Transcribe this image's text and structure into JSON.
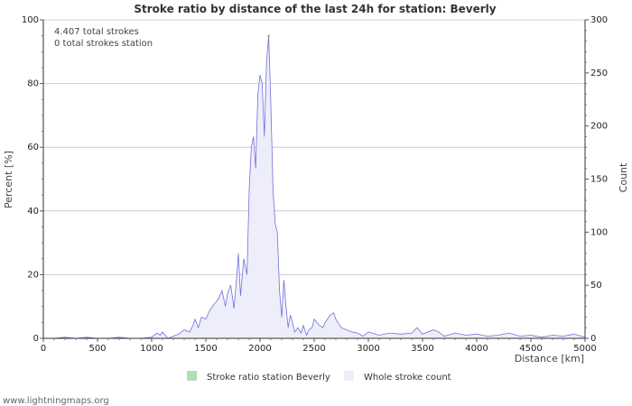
{
  "chart_data": {
    "type": "area",
    "title": "Stroke ratio by distance of the last 24h for station: Beverly",
    "xlabel": "Distance   [km]",
    "ylabel_left": "Percent   [%]",
    "ylabel_right": "Count",
    "xlim": [
      0,
      5000
    ],
    "ylim_left": [
      0,
      100
    ],
    "ylim_right": [
      0,
      300
    ],
    "x_ticks": [
      0,
      500,
      1000,
      1500,
      2000,
      2500,
      3000,
      3500,
      4000,
      4500,
      5000
    ],
    "y_ticks_left": [
      0,
      20,
      40,
      60,
      80,
      100
    ],
    "y_ticks_right": [
      0,
      50,
      100,
      150,
      200,
      250,
      300
    ],
    "grid": true,
    "annotations": [
      "4.407 total strokes",
      "0 total strokes station"
    ],
    "colors": {
      "ratio": "#b4dcb4",
      "count_fill": "#eeeefa",
      "count_line": "#7070dd",
      "grid": "#cccccc"
    },
    "legend": [
      {
        "label": "Stroke ratio station Beverly",
        "color": "#b4dcb4"
      },
      {
        "label": "Whole stroke count",
        "color": "#eeeefa"
      }
    ],
    "series": [
      {
        "name": "Stroke ratio station Beverly",
        "axis": "left",
        "x": [
          0,
          5000
        ],
        "values": [
          0,
          0
        ]
      },
      {
        "name": "Whole stroke count",
        "axis": "right",
        "x": [
          0,
          100,
          200,
          300,
          400,
          500,
          600,
          700,
          800,
          900,
          1000,
          1050,
          1080,
          1100,
          1150,
          1200,
          1250,
          1300,
          1350,
          1380,
          1400,
          1430,
          1460,
          1500,
          1530,
          1560,
          1600,
          1620,
          1650,
          1680,
          1700,
          1730,
          1760,
          1790,
          1800,
          1820,
          1850,
          1880,
          1900,
          1920,
          1940,
          1960,
          1980,
          2000,
          2020,
          2040,
          2060,
          2080,
          2100,
          2120,
          2140,
          2160,
          2180,
          2200,
          2220,
          2240,
          2260,
          2280,
          2300,
          2320,
          2350,
          2380,
          2400,
          2430,
          2450,
          2480,
          2500,
          2550,
          2580,
          2600,
          2650,
          2680,
          2700,
          2750,
          2800,
          2850,
          2900,
          2950,
          3000,
          3100,
          3200,
          3300,
          3400,
          3450,
          3500,
          3600,
          3650,
          3700,
          3800,
          3900,
          4000,
          4100,
          4200,
          4300,
          4400,
          4500,
          4600,
          4700,
          4800,
          4900,
          5000
        ],
        "values": [
          0,
          0,
          1,
          0,
          1,
          0,
          0,
          1,
          0,
          0,
          1,
          5,
          3,
          6,
          0,
          2,
          4,
          8,
          6,
          12,
          18,
          10,
          20,
          18,
          25,
          30,
          35,
          38,
          45,
          30,
          42,
          50,
          28,
          65,
          80,
          40,
          75,
          60,
          140,
          180,
          190,
          160,
          230,
          248,
          240,
          190,
          260,
          285,
          220,
          140,
          108,
          100,
          45,
          20,
          55,
          30,
          10,
          22,
          15,
          6,
          10,
          5,
          12,
          3,
          8,
          10,
          18,
          12,
          10,
          15,
          22,
          24,
          18,
          10,
          8,
          6,
          5,
          2,
          6,
          3,
          5,
          4,
          5,
          10,
          4,
          8,
          6,
          2,
          5,
          3,
          4,
          2,
          3,
          5,
          2,
          3,
          1,
          3,
          2,
          4,
          1
        ]
      }
    ]
  },
  "footer": "www.lightningmaps.org"
}
